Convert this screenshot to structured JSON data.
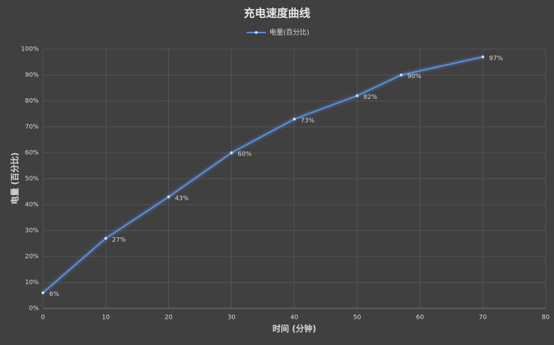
{
  "chart_data": {
    "type": "line",
    "title": "充电速度曲线",
    "x_label": "时间 (分钟)",
    "y_label": "电量 (百分比)",
    "x": [
      0,
      10,
      20,
      30,
      40,
      50,
      57,
      70
    ],
    "series": [
      {
        "name": "电量(百分比)",
        "color": "#5b8fe0",
        "values": [
          6,
          27,
          43,
          60,
          73,
          82,
          90,
          97
        ],
        "value_labels": [
          "6%",
          "27%",
          "43%",
          "60%",
          "73%",
          "82%",
          "90%",
          "97%"
        ]
      }
    ],
    "xlim": [
      0,
      80
    ],
    "xticks": [
      0,
      10,
      20,
      30,
      40,
      50,
      60,
      70,
      80
    ],
    "ylim": [
      0,
      100
    ],
    "yticks": [
      {
        "value": 0,
        "label": "0%"
      },
      {
        "value": 10,
        "label": "10%"
      },
      {
        "value": 20,
        "label": "20%"
      },
      {
        "value": 30,
        "label": "30%"
      },
      {
        "value": 40,
        "label": "40%"
      },
      {
        "value": 50,
        "label": "50%"
      },
      {
        "value": 60,
        "label": "60%"
      },
      {
        "value": 70,
        "label": "70%"
      },
      {
        "value": 80,
        "label": "80%"
      },
      {
        "value": 90,
        "label": "90%"
      },
      {
        "value": 100,
        "label": "100%"
      }
    ],
    "grid": true,
    "legend": "top"
  }
}
